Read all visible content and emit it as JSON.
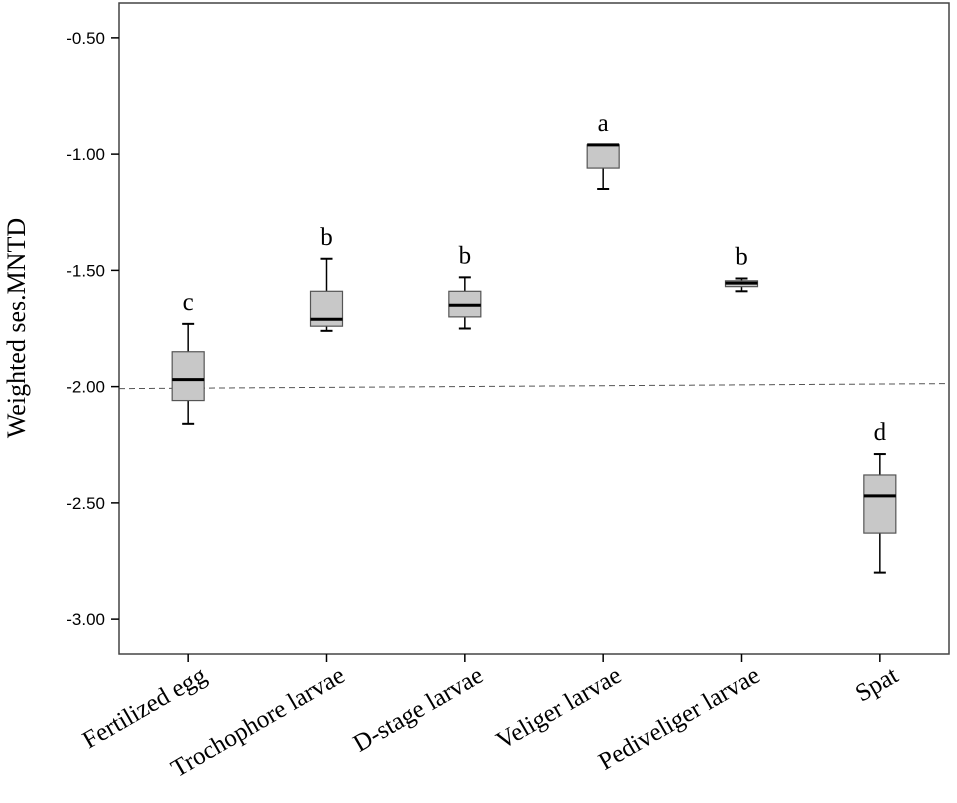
{
  "chart_data": {
    "type": "box",
    "title": "",
    "xlabel": "",
    "ylabel": "Weighted ses.MNTD",
    "ylim": [
      -3.15,
      -0.35
    ],
    "yticks": [
      -0.5,
      -1.0,
      -1.5,
      -2.0,
      -2.5,
      -3.0
    ],
    "ytick_labels": [
      "-0.50",
      "-1.00",
      "-1.50",
      "-2.00",
      "-2.50",
      "-3.00"
    ],
    "reference_line": {
      "y": -2.0,
      "style": "dashed"
    },
    "categories": [
      "Fertilized egg",
      "Trochophore larvae",
      "D-stage larvae",
      "Veliger larvae",
      "Pediveliger larvae",
      "Spat"
    ],
    "boxes": [
      {
        "category": "Fertilized egg",
        "whisker_low": -2.16,
        "q1": -2.06,
        "median": -1.97,
        "q3": -1.85,
        "whisker_high": -1.73,
        "label": "c"
      },
      {
        "category": "Trochophore larvae",
        "whisker_low": -1.76,
        "q1": -1.74,
        "median": -1.71,
        "q3": -1.59,
        "whisker_high": -1.45,
        "label": "b"
      },
      {
        "category": "D-stage larvae",
        "whisker_low": -1.75,
        "q1": -1.7,
        "median": -1.65,
        "q3": -1.59,
        "whisker_high": -1.53,
        "label": "b"
      },
      {
        "category": "Veliger larvae",
        "whisker_low": -1.15,
        "q1": -1.06,
        "median": -0.96,
        "q3": -0.96,
        "whisker_high": -0.96,
        "label": "a"
      },
      {
        "category": "Pediveliger larvae",
        "whisker_low": -1.59,
        "q1": -1.57,
        "median": -1.555,
        "q3": -1.545,
        "whisker_high": -1.535,
        "label": "b"
      },
      {
        "category": "Spat",
        "whisker_low": -2.8,
        "q1": -2.63,
        "median": -2.47,
        "q3": -2.38,
        "whisker_high": -2.29,
        "label": "d"
      }
    ],
    "colors": {
      "box_fill": "#c8c8c8",
      "stroke": "#000000",
      "frame": "#444444",
      "reference": "#555555"
    }
  }
}
